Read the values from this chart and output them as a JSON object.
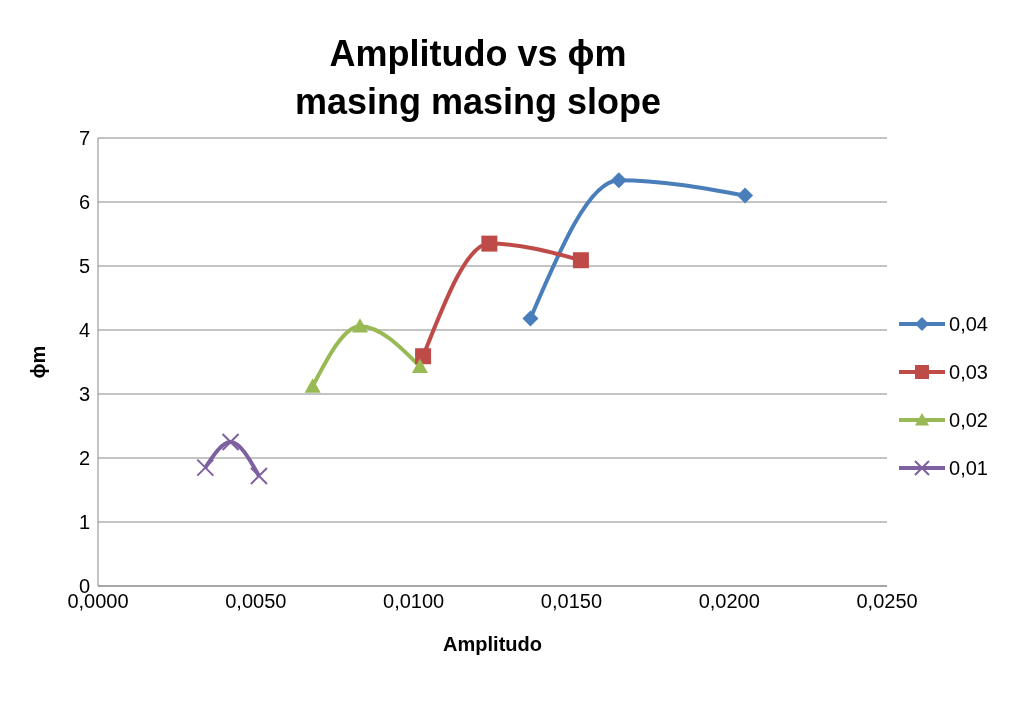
{
  "chart_data": {
    "type": "line",
    "title": "Amplitudo vs ϕm\nmasing masing slope",
    "xlabel": "Amplitudo",
    "ylabel": "ϕm",
    "xlim": [
      0,
      0.025
    ],
    "xticks": [
      {
        "value": 0,
        "label": "0,0000"
      },
      {
        "value": 0.005,
        "label": "0,0050"
      },
      {
        "value": 0.01,
        "label": "0,0100"
      },
      {
        "value": 0.015,
        "label": "0,0150"
      },
      {
        "value": 0.02,
        "label": "0,0200"
      },
      {
        "value": 0.025,
        "label": "0,0250"
      }
    ],
    "ylim": [
      0,
      7
    ],
    "yticks": [
      0,
      1,
      2,
      3,
      4,
      5,
      6,
      7
    ],
    "grid": "y",
    "legend": "right",
    "series": [
      {
        "name": "0,04",
        "color": "#4a7ebb",
        "marker": "diamond",
        "x": [
          0.0137,
          0.0165,
          0.0205
        ],
        "values": [
          4.18,
          6.34,
          6.1
        ]
      },
      {
        "name": "0,03",
        "color": "#be4b48",
        "marker": "square",
        "x": [
          0.0103,
          0.0124,
          0.0153
        ],
        "values": [
          3.59,
          5.35,
          5.09
        ]
      },
      {
        "name": "0,02",
        "color": "#98b954",
        "marker": "triangle",
        "x": [
          0.0068,
          0.0083,
          0.0102
        ],
        "values": [
          3.12,
          4.06,
          3.43
        ]
      },
      {
        "name": "0,01",
        "color": "#7d60a0",
        "marker": "cross",
        "x": [
          0.0034,
          0.0042,
          0.0051
        ],
        "values": [
          1.85,
          2.25,
          1.72
        ]
      }
    ]
  }
}
